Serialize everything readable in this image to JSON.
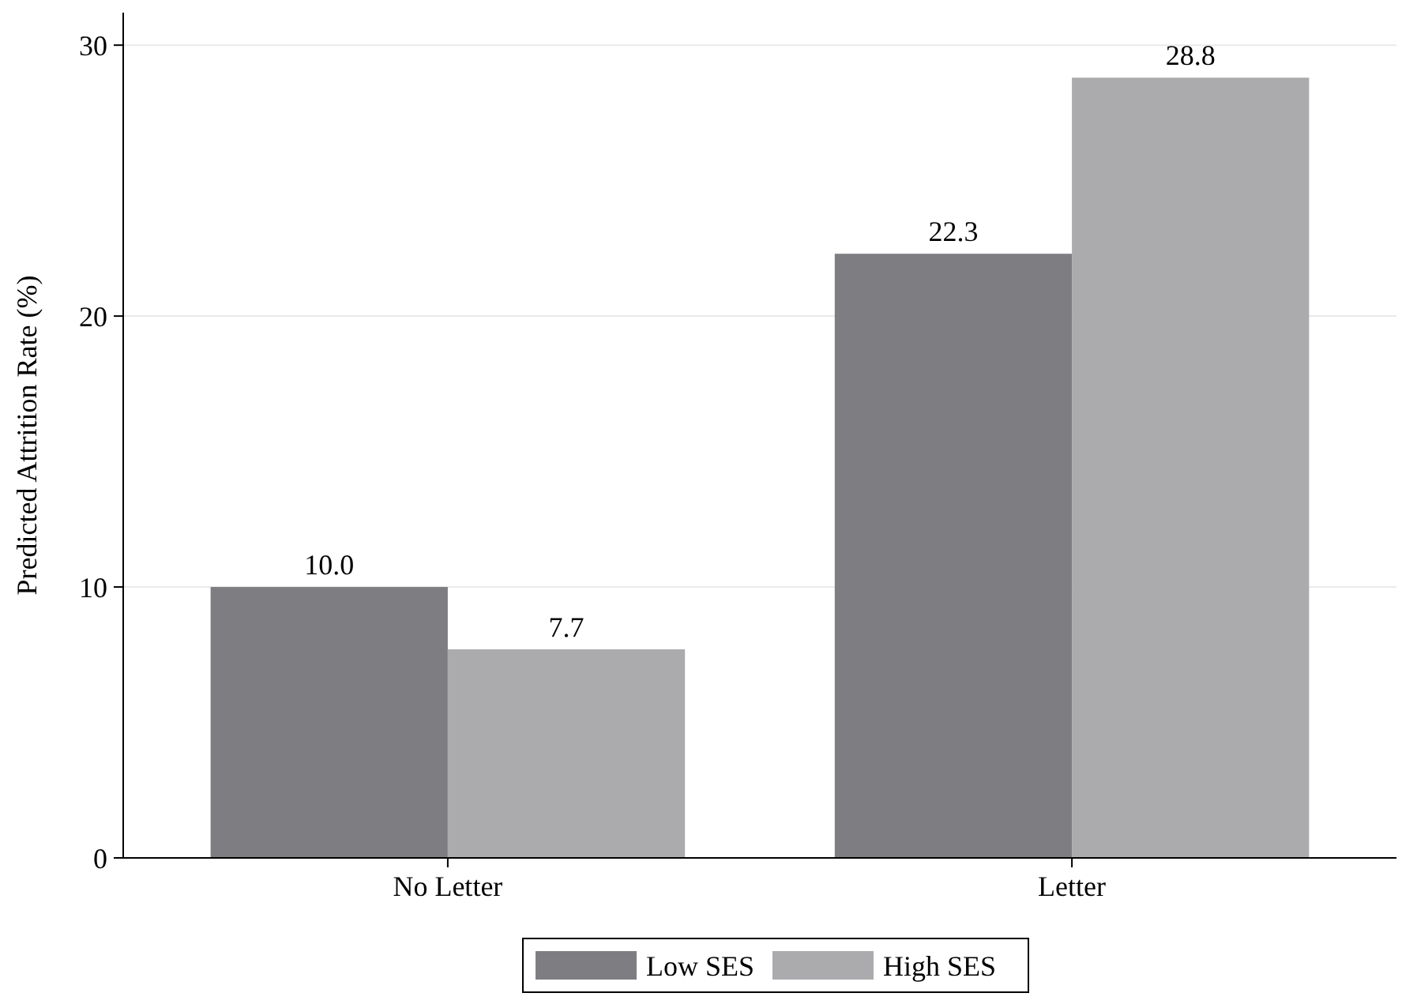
{
  "chart_data": {
    "type": "bar",
    "ylabel": "Predicted Attrition Rate (%)",
    "categories": [
      "No Letter",
      "Letter"
    ],
    "series": [
      {
        "name": "Low SES",
        "color": "#7e7e82",
        "values": [
          10.0,
          22.3
        ],
        "value_labels": [
          "10.0",
          "22.3"
        ]
      },
      {
        "name": "High SES",
        "color": "#ababae",
        "values": [
          7.7,
          28.8
        ],
        "value_labels": [
          "7.7",
          "28.8"
        ]
      }
    ],
    "ylim": [
      0,
      31.2
    ],
    "yticks": [
      0,
      10,
      20,
      30
    ],
    "grid": "y",
    "legend": "bottom"
  }
}
